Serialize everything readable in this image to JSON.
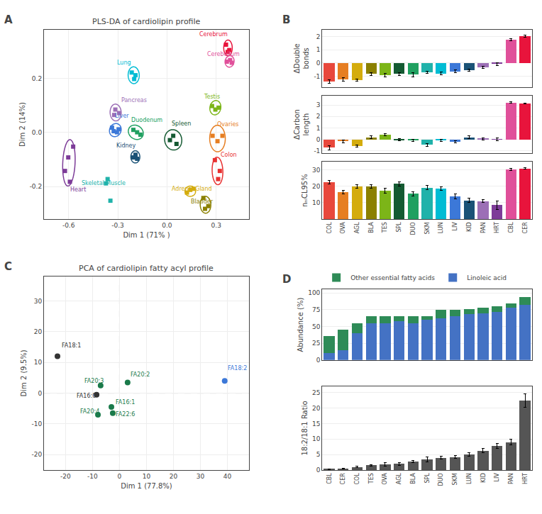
{
  "chart_data": [
    {
      "type": "scatter",
      "annotations": [
        "A"
      ],
      "title": "PLS-DA of cardiolipin profile",
      "xlabel": "Dim 1 (71% )",
      "ylabel": "Dim 2 (14%)",
      "xlim": [
        -0.75,
        0.5
      ],
      "ylim": [
        -0.32,
        0.38
      ],
      "xticks": [
        -0.6,
        -0.3,
        {
          "value": 0,
          "label": "0.0"
        },
        0.3
      ],
      "yticks": [
        -0.2,
        {
          "value": 0,
          "label": "0.0"
        },
        0.2
      ],
      "grid": true,
      "marker": "square",
      "series": [
        {
          "name": "Cerebrum",
          "color": "#e8143c",
          "x": [
            0.36,
            0.38,
            0.37
          ],
          "y": [
            0.325,
            0.305,
            0.298
          ],
          "label_x": 0.19,
          "label_y": 0.345,
          "ellipse": {
            "x": 0.372,
            "y": 0.313,
            "width": 0.052,
            "height": 0.058,
            "angle": 0
          }
        },
        {
          "name": "Cerebellum",
          "color": "#e0509a",
          "x": [
            0.385,
            0.395,
            0.365
          ],
          "y": [
            0.268,
            0.258,
            0.262
          ],
          "label_x": 0.235,
          "label_y": 0.273,
          "ellipse": {
            "x": 0.382,
            "y": 0.263,
            "width": 0.055,
            "height": 0.042,
            "angle": 8
          }
        },
        {
          "name": "Lung",
          "color": "#00bcd4",
          "x": [
            -0.215,
            -0.2,
            -0.192
          ],
          "y": [
            0.222,
            0.198,
            0.212
          ],
          "label_x": -0.315,
          "label_y": 0.242,
          "ellipse": {
            "x": -0.203,
            "y": 0.212,
            "width": 0.068,
            "height": 0.062,
            "angle": -8
          }
        },
        {
          "name": "Testis",
          "color": "#7cb518",
          "x": [
            0.275,
            0.295,
            0.315
          ],
          "y": [
            0.098,
            0.085,
            0.092
          ],
          "label_x": 0.215,
          "label_y": 0.115,
          "ellipse": {
            "x": 0.295,
            "y": 0.092,
            "width": 0.068,
            "height": 0.052,
            "angle": 12
          }
        },
        {
          "name": "Pancreas",
          "color": "#9c6fb6",
          "x": [
            -0.315,
            -0.292,
            -0.322
          ],
          "y": [
            0.085,
            0.072,
            0.065
          ],
          "label_x": -0.285,
          "label_y": 0.102,
          "ellipse": {
            "x": -0.313,
            "y": 0.074,
            "width": 0.068,
            "height": 0.062,
            "angle": -12
          }
        },
        {
          "name": "Liver",
          "color": "#3c78d8",
          "x": [
            -0.335,
            -0.295,
            -0.325,
            -0.305
          ],
          "y": [
            0.018,
            0.012,
            0.005,
            0.001
          ],
          "label_x": -0.325,
          "label_y": 0.045,
          "ellipse": {
            "x": -0.315,
            "y": 0.009,
            "width": 0.072,
            "height": 0.048,
            "angle": 8
          }
        },
        {
          "name": "Duodenum",
          "color": "#20a060",
          "x": [
            -0.205,
            -0.182,
            -0.162
          ],
          "y": [
            0.01,
            0.001,
            -0.008
          ],
          "label_x": -0.228,
          "label_y": 0.028,
          "ellipse": {
            "x": -0.19,
            "y": 0.001,
            "width": 0.092,
            "height": 0.052,
            "angle": -8
          }
        },
        {
          "name": "Spleen",
          "color": "#145a32",
          "x": [
            0.038,
            0.018,
            0.058
          ],
          "y": [
            -0.012,
            -0.028,
            -0.042
          ],
          "label_x": 0.018,
          "label_y": 0.015,
          "ellipse": {
            "x": 0.038,
            "y": -0.027,
            "width": 0.105,
            "height": 0.075,
            "angle": -5
          }
        },
        {
          "name": "Kidney",
          "color": "#1a5276",
          "x": [
            -0.192,
            -0.205,
            -0.182
          ],
          "y": [
            -0.082,
            -0.092,
            -0.097
          ],
          "label_x": -0.318,
          "label_y": -0.065,
          "ellipse": {
            "x": -0.193,
            "y": -0.09,
            "width": 0.055,
            "height": 0.045,
            "angle": 0
          }
        },
        {
          "name": "Ovaries",
          "color": "#e67e22",
          "x": [
            0.278,
            0.308,
            0.338
          ],
          "y": [
            -0.012,
            -0.032,
            -0.012
          ],
          "label_x": 0.295,
          "label_y": 0.012,
          "ellipse": {
            "x": 0.308,
            "y": -0.022,
            "width": 0.095,
            "height": 0.098,
            "angle": 10
          }
        },
        {
          "name": "Colon",
          "color": "#e83030",
          "x": [
            0.292,
            0.322,
            0.312
          ],
          "y": [
            -0.102,
            -0.142,
            -0.172
          ],
          "label_x": 0.318,
          "label_y": -0.1,
          "ellipse": {
            "x": 0.308,
            "y": -0.142,
            "width": 0.065,
            "height": 0.102,
            "angle": 5
          }
        },
        {
          "name": "Heart",
          "color": "#7d3c98",
          "x": [
            -0.602,
            -0.572,
            -0.622,
            -0.592
          ],
          "y": [
            -0.092,
            -0.052,
            -0.142,
            -0.182
          ],
          "label_x": -0.598,
          "label_y": -0.228,
          "ellipse": {
            "x": -0.598,
            "y": -0.112,
            "width": 0.075,
            "height": 0.172,
            "angle": -5
          }
        },
        {
          "name": "Skeletal Muscle",
          "color": "#20b2aa",
          "x": [
            -0.362,
            -0.372,
            -0.345
          ],
          "y": [
            -0.172,
            -0.188,
            -0.252
          ],
          "label_x": -0.528,
          "label_y": -0.205,
          "ellipse": null
        },
        {
          "name": "Adrenal Gland",
          "color": "#d4ac0d",
          "x": [
            0.142,
            0.122,
            0.162
          ],
          "y": [
            -0.212,
            -0.222,
            -0.208
          ],
          "label_x": 0.018,
          "label_y": -0.225,
          "ellipse": {
            "x": 0.142,
            "y": -0.217,
            "width": 0.065,
            "height": 0.038,
            "angle": 0
          }
        },
        {
          "name": "Bladder",
          "color": "#8B8000",
          "x": [
            0.222,
            0.252,
            0.232
          ],
          "y": [
            -0.242,
            -0.272,
            -0.282
          ],
          "label_x": 0.138,
          "label_y": -0.272,
          "ellipse": {
            "x": 0.235,
            "y": -0.267,
            "width": 0.065,
            "height": 0.062,
            "angle": -18
          }
        }
      ]
    },
    {
      "type": "bar",
      "annotations": [
        "B"
      ],
      "categories": [
        "COL",
        "OVA",
        "AGL",
        "BLA",
        "TES",
        "SPL",
        "DUO",
        "SKM",
        "LUN",
        "LIV",
        "KID",
        "PAN",
        "HRT",
        "CBL",
        "CER"
      ],
      "colors": [
        "#e8483c",
        "#e67e22",
        "#d4ac0d",
        "#8B8000",
        "#7cb518",
        "#145a32",
        "#20a060",
        "#20b2aa",
        "#00bcd4",
        "#3c78d8",
        "#1a5276",
        "#9c6fb6",
        "#7d3c98",
        "#e0509a",
        "#e8143c"
      ],
      "values": [
        -1.38,
        -1.22,
        -1.28,
        -0.82,
        -0.92,
        -0.82,
        -0.88,
        -0.72,
        -0.78,
        -0.62,
        -0.52,
        -0.32,
        -0.08,
        1.78,
        2.02
      ],
      "errors": [
        0.12,
        0.12,
        0.08,
        0.12,
        0.12,
        0.1,
        0.15,
        0.08,
        0.1,
        0.1,
        0.08,
        0.1,
        0.12,
        0.08,
        0.07
      ],
      "ylabel": "ΔDouble\nbonds",
      "ylim": [
        -1.8,
        2.5
      ],
      "yticks": [
        -1,
        0,
        1,
        2
      ],
      "grid": "y",
      "tick_labels": "y"
    },
    {
      "type": "bar",
      "categories": [
        "COL",
        "OVA",
        "AGL",
        "BLA",
        "TES",
        "SPL",
        "DUO",
        "SKM",
        "LUN",
        "LIV",
        "KID",
        "PAN",
        "HRT",
        "CBL",
        "CER"
      ],
      "colors": [
        "#e8483c",
        "#e67e22",
        "#d4ac0d",
        "#8B8000",
        "#7cb518",
        "#145a32",
        "#20a060",
        "#20b2aa",
        "#00bcd4",
        "#3c78d8",
        "#1a5276",
        "#9c6fb6",
        "#7d3c98",
        "#e0509a",
        "#e8143c"
      ],
      "values": [
        -0.72,
        -0.18,
        -0.58,
        0.18,
        0.42,
        -0.05,
        -0.07,
        -0.48,
        -0.08,
        -0.22,
        0.18,
        0.05,
        -0.02,
        3.22,
        3.12
      ],
      "errors": [
        0.18,
        0.12,
        0.1,
        0.12,
        0.1,
        0.1,
        0.1,
        0.12,
        0.1,
        0.1,
        0.1,
        0.1,
        0.12,
        0.06,
        0.05
      ],
      "ylabel": "ΔCarbon\nlength",
      "ylim": [
        -1.2,
        3.8
      ],
      "yticks": [
        -1,
        0,
        1,
        2,
        3
      ],
      "grid": "y",
      "tick_labels": "y"
    },
    {
      "type": "bar",
      "categories": [
        "COL",
        "OVA",
        "AGL",
        "BLA",
        "TES",
        "SPL",
        "DUO",
        "SKM",
        "LUN",
        "LIV",
        "KID",
        "PAN",
        "HRT",
        "CBL",
        "CER"
      ],
      "colors": [
        "#e8483c",
        "#e67e22",
        "#d4ac0d",
        "#8B8000",
        "#7cb518",
        "#145a32",
        "#20a060",
        "#20b2aa",
        "#00bcd4",
        "#3c78d8",
        "#1a5276",
        "#9c6fb6",
        "#7d3c98",
        "#e0509a",
        "#e8143c"
      ],
      "values": [
        22.5,
        16.5,
        20.0,
        20.0,
        17.5,
        21.5,
        15.5,
        19.2,
        18.7,
        14.0,
        11.5,
        11.0,
        8.5,
        30.5,
        31.0
      ],
      "errors": [
        1.2,
        1.2,
        1.2,
        1.2,
        1.5,
        1.2,
        1.2,
        1.2,
        1.2,
        1.5,
        1.2,
        0.8,
        2.5,
        0.6,
        0.6
      ],
      "ylabel": "nₙₗCL95%",
      "ylim": [
        0,
        35
      ],
      "yticks": [
        10,
        20,
        30
      ],
      "grid": "y"
    },
    {
      "type": "scatter",
      "annotations": [
        "C"
      ],
      "title": "PCA of cardiolipin fatty acyl profile",
      "xlabel": "Dim 1 (77.8%)",
      "ylabel": "Dim 2 (9.5%)",
      "xlim": [
        -28,
        48
      ],
      "ylim": [
        -25,
        38
      ],
      "xticks": [
        -20,
        -10,
        0,
        10,
        20,
        30,
        40
      ],
      "yticks": [
        -20,
        -10,
        0,
        10,
        20,
        30
      ],
      "grid": true,
      "marker": "circle",
      "reference_lines": {
        "x": [
          0
        ],
        "y": [
          0
        ],
        "line_style": "dashed"
      },
      "point_labels": [
        "FA18:1",
        "FA18:2",
        "FA20:3",
        "FA20:2",
        "FA16:0",
        "FA16:1",
        "FA20:4",
        "FA22:6"
      ],
      "x": [
        -23,
        39,
        -7,
        3,
        -8.5,
        -3,
        -8,
        -2.5
      ],
      "y": [
        12,
        4,
        2.5,
        3.5,
        -0.5,
        -4.5,
        -7,
        -6.5
      ],
      "colors": [
        "#333333",
        "#3c78d8",
        "#1a7a4a",
        "#1a7a4a",
        "#333333",
        "#1a7a4a",
        "#1a7a4a",
        "#1a7a4a"
      ],
      "label_x": [
        -22,
        39.5,
        -13.5,
        3.5,
        -16.5,
        -2,
        -15,
        -2
      ],
      "label_y": [
        14,
        6.5,
        2.5,
        4.5,
        -2.5,
        -4.5,
        -7.5,
        -8.5
      ]
    },
    {
      "type": "bar",
      "annotations": [
        "D"
      ],
      "stacked": true,
      "legend": "top left",
      "categories": [
        "CBL",
        "CER",
        "COL",
        "TES",
        "OVA",
        "AGL",
        "BLA",
        "SPL",
        "DUO",
        "SKM",
        "LUN",
        "KID",
        "LIV",
        "PAN",
        "HRT"
      ],
      "series": [
        {
          "name": "Linoleic acid",
          "color": "#4472c4",
          "values": [
            10,
            15,
            40,
            55,
            55,
            58,
            55,
            60,
            62,
            65,
            68,
            70,
            72,
            78,
            82
          ]
        },
        {
          "name": "Other essential fatty acids",
          "color": "#2e8b57",
          "values": [
            26,
            30,
            15,
            10,
            10,
            7,
            10,
            5,
            13,
            10,
            8,
            8,
            8,
            6,
            12
          ]
        }
      ],
      "ylabel": "Abundance (%)",
      "ylim": [
        0,
        105
      ],
      "yticks": [
        0,
        25,
        50,
        75,
        100
      ],
      "grid": "y",
      "tick_labels": "y"
    },
    {
      "type": "bar",
      "categories": [
        "CBL",
        "CER",
        "COL",
        "TES",
        "OVA",
        "AGL",
        "BLA",
        "SPL",
        "DUO",
        "SKM",
        "LUN",
        "KID",
        "LIV",
        "PAN",
        "HRT"
      ],
      "values": [
        0.3,
        0.5,
        1.0,
        1.5,
        1.8,
        2.0,
        2.8,
        3.5,
        4.0,
        4.2,
        5.0,
        6.2,
        7.8,
        9.0,
        22.5
      ],
      "errors": [
        0.1,
        0.1,
        0.2,
        0.3,
        0.5,
        0.4,
        0.4,
        0.8,
        0.5,
        0.5,
        0.6,
        0.7,
        0.8,
        0.9,
        2.2
      ],
      "color": "#555555",
      "ylabel": "18:2/18:1 Ratio",
      "ylim": [
        0,
        27
      ],
      "yticks": [
        0,
        5,
        10,
        15,
        20,
        25
      ],
      "grid": "y"
    }
  ]
}
